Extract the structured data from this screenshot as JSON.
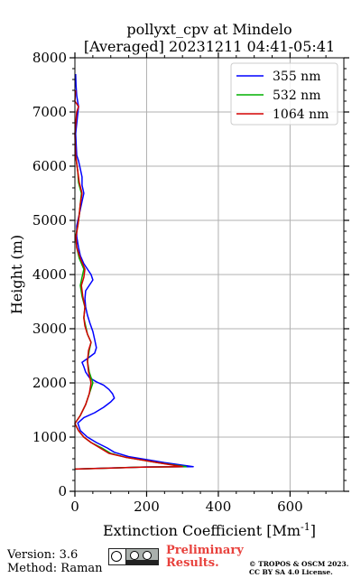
{
  "chart_data": {
    "type": "line",
    "title": "pollyxt_cpv at Mindelo",
    "subtitle": "[Averaged] 20231211 04:41-05:41",
    "xlabel": "Extinction Coefficient [Mm",
    "xlabel_sup": "-1",
    "xlabel_end": "]",
    "ylabel": "Height (m)",
    "xlim": [
      0,
      750
    ],
    "ylim": [
      0,
      8000
    ],
    "xticks": [
      0,
      200,
      400,
      600
    ],
    "yticks": [
      0,
      1000,
      2000,
      3000,
      4000,
      5000,
      6000,
      7000,
      8000
    ],
    "grid": true,
    "legend_position": "top-right",
    "series": [
      {
        "name": "355 nm",
        "color": "#0000ff",
        "points": [
          [
            0,
            410
          ],
          [
            200,
            450
          ],
          [
            330,
            455
          ],
          [
            250,
            530
          ],
          [
            150,
            640
          ],
          [
            110,
            720
          ],
          [
            90,
            800
          ],
          [
            60,
            900
          ],
          [
            35,
            1000
          ],
          [
            15,
            1120
          ],
          [
            8,
            1260
          ],
          [
            25,
            1360
          ],
          [
            55,
            1450
          ],
          [
            80,
            1550
          ],
          [
            100,
            1650
          ],
          [
            110,
            1720
          ],
          [
            105,
            1800
          ],
          [
            95,
            1880
          ],
          [
            80,
            1960
          ],
          [
            60,
            2020
          ],
          [
            40,
            2100
          ],
          [
            30,
            2200
          ],
          [
            25,
            2300
          ],
          [
            20,
            2380
          ],
          [
            35,
            2450
          ],
          [
            55,
            2550
          ],
          [
            60,
            2650
          ],
          [
            55,
            2800
          ],
          [
            50,
            2950
          ],
          [
            42,
            3100
          ],
          [
            35,
            3250
          ],
          [
            30,
            3400
          ],
          [
            28,
            3550
          ],
          [
            30,
            3700
          ],
          [
            40,
            3800
          ],
          [
            50,
            3900
          ],
          [
            45,
            4000
          ],
          [
            35,
            4100
          ],
          [
            25,
            4200
          ],
          [
            15,
            4350
          ],
          [
            10,
            4500
          ],
          [
            5,
            4700
          ],
          [
            5,
            4900
          ],
          [
            10,
            5050
          ],
          [
            15,
            5200
          ],
          [
            20,
            5350
          ],
          [
            25,
            5500
          ],
          [
            20,
            5650
          ],
          [
            20,
            5800
          ],
          [
            15,
            5950
          ],
          [
            10,
            6100
          ],
          [
            5,
            6200
          ],
          [
            2,
            6600
          ],
          [
            10,
            7100
          ],
          [
            5,
            7300
          ],
          [
            3,
            7500
          ],
          [
            2,
            7700
          ]
        ]
      },
      {
        "name": "532 nm",
        "color": "#00b000",
        "points": [
          [
            0,
            410
          ],
          [
            180,
            445
          ],
          [
            310,
            455
          ],
          [
            230,
            530
          ],
          [
            140,
            630
          ],
          [
            100,
            700
          ],
          [
            75,
            800
          ],
          [
            45,
            900
          ],
          [
            25,
            1000
          ],
          [
            10,
            1120
          ],
          [
            0,
            1250
          ],
          [
            5,
            1300
          ],
          [
            15,
            1400
          ],
          [
            30,
            1600
          ],
          [
            40,
            1800
          ],
          [
            50,
            2000
          ],
          [
            40,
            2200
          ],
          [
            35,
            2400
          ],
          [
            40,
            2600
          ],
          [
            45,
            2750
          ],
          [
            35,
            2900
          ],
          [
            30,
            3050
          ],
          [
            25,
            3200
          ],
          [
            28,
            3400
          ],
          [
            20,
            3600
          ],
          [
            15,
            3800
          ],
          [
            20,
            3950
          ],
          [
            25,
            4100
          ],
          [
            12,
            4300
          ],
          [
            5,
            4500
          ],
          [
            2,
            4700
          ],
          [
            8,
            4900
          ],
          [
            12,
            5100
          ],
          [
            15,
            5300
          ],
          [
            18,
            5500
          ],
          [
            10,
            5700
          ],
          [
            8,
            5900
          ],
          [
            2,
            6200
          ]
        ]
      },
      {
        "name": "1064 nm",
        "color": "#d40000",
        "points": [
          [
            0,
            410
          ],
          [
            190,
            445
          ],
          [
            300,
            455
          ],
          [
            230,
            530
          ],
          [
            140,
            630
          ],
          [
            95,
            700
          ],
          [
            70,
            800
          ],
          [
            45,
            900
          ],
          [
            25,
            1000
          ],
          [
            10,
            1120
          ],
          [
            0,
            1250
          ],
          [
            5,
            1300
          ],
          [
            15,
            1400
          ],
          [
            30,
            1600
          ],
          [
            40,
            1800
          ],
          [
            45,
            2000
          ],
          [
            38,
            2200
          ],
          [
            35,
            2400
          ],
          [
            38,
            2600
          ],
          [
            45,
            2750
          ],
          [
            35,
            2900
          ],
          [
            28,
            3050
          ],
          [
            25,
            3200
          ],
          [
            28,
            3400
          ],
          [
            22,
            3600
          ],
          [
            18,
            3800
          ],
          [
            25,
            3950
          ],
          [
            28,
            4100
          ],
          [
            15,
            4300
          ],
          [
            5,
            4500
          ],
          [
            3,
            4700
          ],
          [
            8,
            4900
          ],
          [
            12,
            5100
          ],
          [
            15,
            5300
          ],
          [
            20,
            5500
          ],
          [
            12,
            5700
          ],
          [
            8,
            5900
          ],
          [
            2,
            6200
          ],
          [
            0,
            6600
          ],
          [
            5,
            7000
          ],
          [
            10,
            7100
          ],
          [
            0,
            7200
          ],
          [
            2,
            7400
          ]
        ]
      }
    ]
  },
  "footer": {
    "version": "Version: 3.6",
    "method": "Method: Raman",
    "preliminary": "Preliminary Results.",
    "copyright": "© TROPOS & OSCM 2023. CC BY SA 4.0 License."
  }
}
